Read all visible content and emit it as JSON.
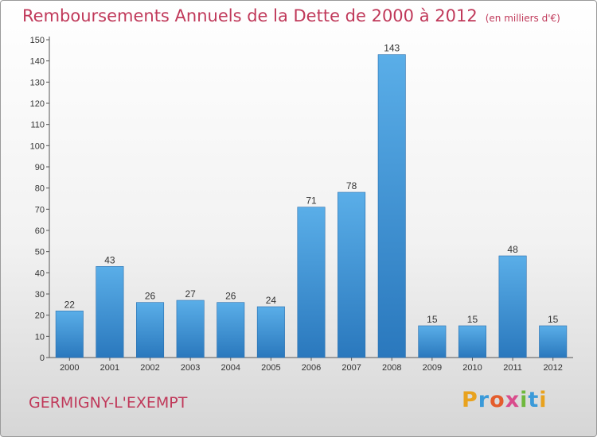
{
  "header": {
    "title": "Remboursements Annuels de la Dette de 2000 à 2012",
    "subtitle": "(en milliers d'€)"
  },
  "footer": {
    "commune": "GERMIGNY-L'EXEMPT",
    "logo_letters": [
      "P",
      "r",
      "o",
      "x",
      "i",
      "t",
      "i"
    ],
    "logo_colors": [
      "#e8a21e",
      "#3a9ad9",
      "#e45c2c",
      "#d94c8c",
      "#6fb83d",
      "#3a9ad9",
      "#e8a21e"
    ]
  },
  "chart_data": {
    "type": "bar",
    "categories": [
      "2000",
      "2001",
      "2002",
      "2003",
      "2004",
      "2005",
      "2006",
      "2007",
      "2008",
      "2009",
      "2010",
      "2011",
      "2012"
    ],
    "values": [
      22,
      43,
      26,
      27,
      26,
      24,
      71,
      78,
      143,
      15,
      15,
      48,
      15
    ],
    "data_labels": [
      "22",
      "43",
      "26",
      "27",
      "26",
      "24",
      "71",
      "78",
      "143",
      "15",
      "15",
      "48",
      "15"
    ],
    "ylim": [
      0,
      150
    ],
    "yticks": [
      0,
      10,
      20,
      30,
      40,
      50,
      60,
      70,
      80,
      90,
      100,
      110,
      120,
      130,
      140,
      150
    ],
    "grid": false,
    "bar_color": "#3a8fd4"
  }
}
